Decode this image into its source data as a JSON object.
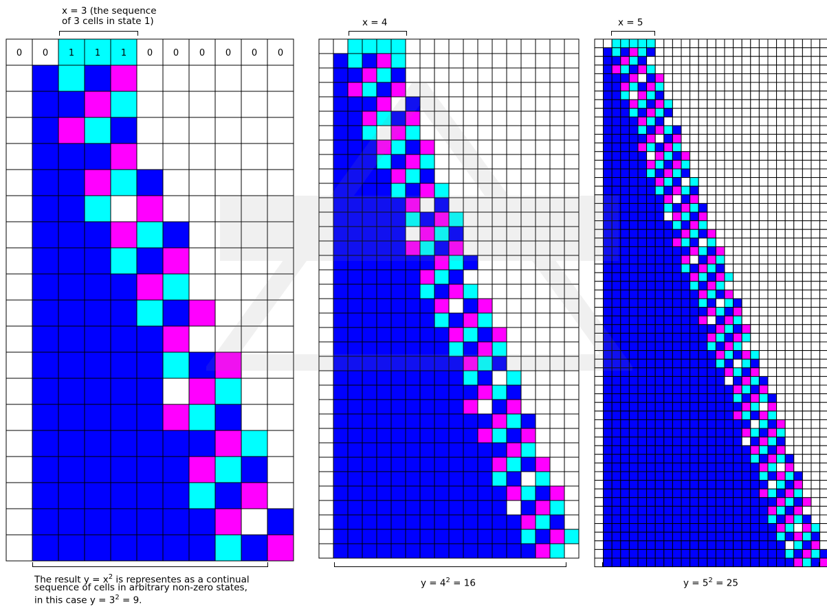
{
  "colors": {
    "state0": "#ffffff",
    "state1": "#00ffff",
    "state2": "#ff00ff",
    "state3": "#0000ff",
    "grid": "#000000"
  },
  "panel1": {
    "label_line1": "x = 3 (the sequence",
    "label_line2": "of 3 cells in state 1)",
    "initial_row": [
      "0",
      "0",
      "1",
      "1",
      "1",
      "0",
      "0",
      "0",
      "0",
      "0",
      "0"
    ],
    "x": 3,
    "result_line1": "The result y = x",
    "result_sup": "2",
    "result_line1_end": " is representes as a continual",
    "result_line2": "sequence of cells in arbitrary non-zero states,",
    "result_line3_start": "in this case y = 3",
    "result_line3_sup": "2",
    "result_line3_end": " = 9."
  },
  "panel2": {
    "label": "x = 4",
    "x": 4,
    "result_start": "y = 4",
    "result_sup": "2",
    "result_end": " = 16"
  },
  "panel3": {
    "label": "x = 5",
    "x": 5,
    "result_start": "y = 5",
    "result_sup": "2",
    "result_end": " = 25"
  }
}
